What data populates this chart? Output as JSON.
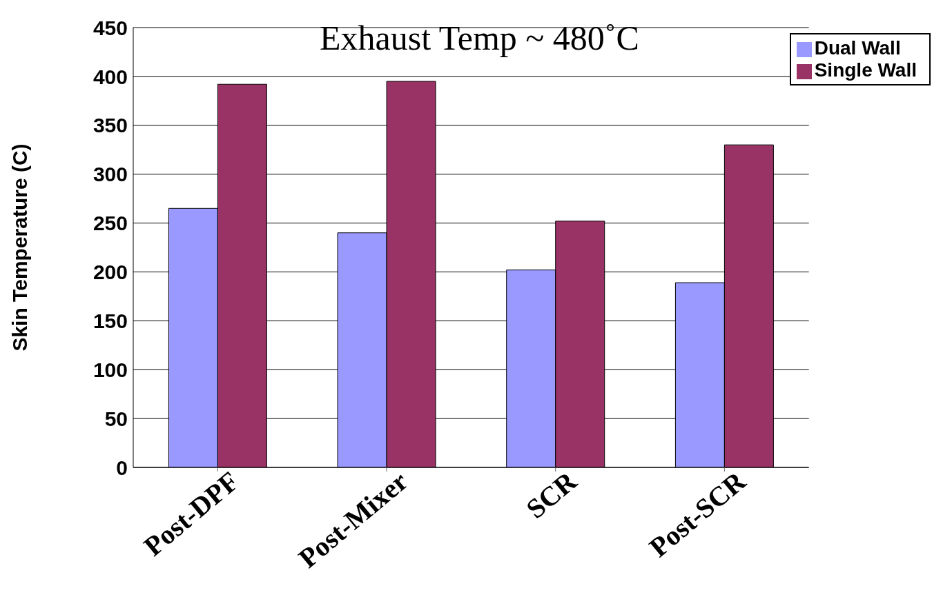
{
  "chart_data": {
    "type": "bar",
    "ylabel": "Skin Temperature (C)",
    "categories": [
      "Post-DPF",
      "Post-Mixer",
      "SCR",
      "Post-SCR"
    ],
    "series": [
      {
        "name": "Dual Wall",
        "color": "#9999ff",
        "values": [
          265,
          240,
          202,
          189
        ]
      },
      {
        "name": "Single Wall",
        "color": "#993366",
        "values": [
          392,
          395,
          252,
          330
        ]
      }
    ],
    "ylim": [
      0,
      450
    ],
    "yticks": [
      0,
      50,
      100,
      150,
      200,
      250,
      300,
      350,
      400,
      450
    ],
    "grid": "y",
    "legend": "top right",
    "annotations": [
      "Exhaust Temp ~ 480˚C"
    ]
  }
}
